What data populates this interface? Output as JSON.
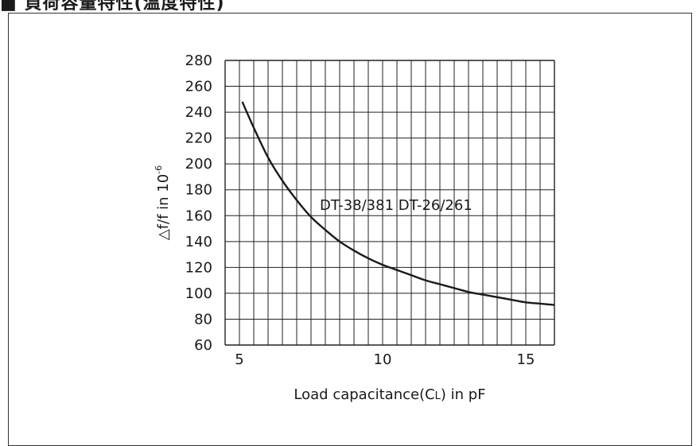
{
  "heading": "■ 負荷容量特性(温度特性)",
  "chart_data": {
    "type": "line",
    "xlabel": "Load capacitance(CL) in pF",
    "xlabel_main": "Load capacitance(C",
    "xlabel_sub": "L",
    "xlabel_tail": ") in pF",
    "ylabel_main": "△f/f in 10",
    "ylabel_sup": "-6",
    "xlim": [
      4.5,
      16
    ],
    "ylim": [
      60,
      280
    ],
    "x_ticks": [
      5,
      10,
      15
    ],
    "y_ticks": [
      60,
      80,
      100,
      120,
      140,
      160,
      180,
      200,
      220,
      240,
      260,
      280
    ],
    "grid": true,
    "series": [
      {
        "name": "DT-38/381 DT-26/261",
        "x": [
          5.1,
          5.5,
          6,
          6.5,
          7,
          7.5,
          8,
          8.5,
          9,
          9.5,
          10,
          10.5,
          11,
          11.5,
          12,
          12.5,
          13,
          13.5,
          14,
          14.5,
          15,
          15.5,
          16
        ],
        "y": [
          248,
          228,
          205,
          187,
          172,
          159,
          149,
          140,
          133,
          127,
          122,
          118,
          114,
          110,
          107,
          104,
          101,
          99,
          97,
          95,
          93,
          92,
          91
        ]
      }
    ]
  }
}
